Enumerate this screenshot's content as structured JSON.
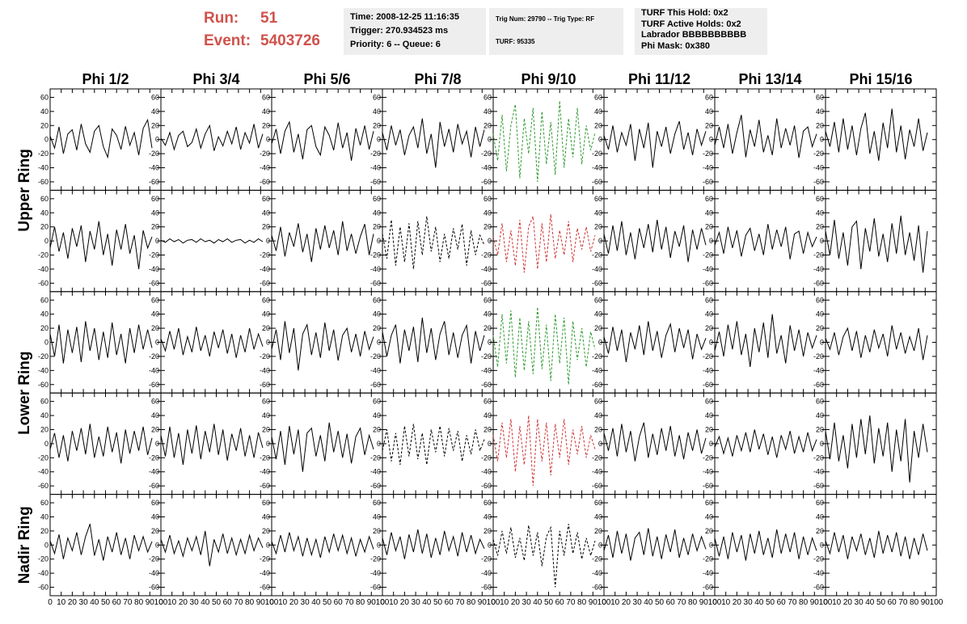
{
  "header": {
    "run": {
      "label": "Run:",
      "value": "51"
    },
    "event": {
      "label": "Event:",
      "value": "5403726"
    },
    "box1": [
      "Time: 2008-12-25 11:16:35",
      "Trigger: 270.934523 ms",
      "Priority: 6 -- Queue: 6"
    ],
    "box2": [
      "Trig Num: 29790 -- Trig Type: RF",
      "TURF: 95335"
    ],
    "box3": [
      "TURF This Hold: 0x2",
      "TURF Active Holds: 0x2",
      "Labrador BBBBBBBBBB",
      "Phi Mask: 0x380"
    ]
  },
  "columns": [
    "Phi 1/2",
    "Phi 3/4",
    "Phi 5/6",
    "Phi 7/8",
    "Phi 9/10",
    "Phi 11/12",
    "Phi 13/14",
    "Phi 15/16"
  ],
  "ring_labels": [
    "Upper Ring",
    "Lower Ring",
    "Nadir Ring"
  ],
  "xlim": [
    0,
    100
  ],
  "xticks": [
    0,
    10,
    20,
    30,
    40,
    50,
    60,
    70,
    80,
    90,
    100
  ],
  "ylim": [
    -72,
    72
  ],
  "yticks": [
    -60,
    -40,
    -20,
    0,
    20,
    40,
    60
  ],
  "x": [
    0,
    4,
    8,
    12,
    16,
    20,
    24,
    28,
    32,
    36,
    40,
    44,
    48,
    52,
    56,
    60,
    64,
    68,
    72,
    76,
    80,
    84,
    88,
    92
  ],
  "panels": [
    [
      {
        "color": "#000000",
        "dashed": false,
        "values": [
          5,
          -12,
          18,
          -20,
          8,
          14,
          -15,
          22,
          -6,
          -18,
          12,
          20,
          -10,
          -25,
          15,
          6,
          -14,
          19,
          -8,
          10,
          -22,
          16,
          28,
          -12
        ]
      },
      {
        "color": "#000000",
        "dashed": false,
        "values": [
          2,
          -8,
          10,
          -14,
          6,
          12,
          -10,
          -4,
          15,
          -12,
          8,
          20,
          -16,
          4,
          -9,
          12,
          -6,
          18,
          -14,
          10,
          -5,
          22,
          -12,
          8
        ]
      },
      {
        "color": "#000000",
        "dashed": false,
        "values": [
          -6,
          15,
          -20,
          12,
          25,
          -18,
          8,
          -28,
          14,
          20,
          -10,
          -22,
          18,
          6,
          -15,
          24,
          -12,
          10,
          -30,
          16,
          -8,
          20,
          -14,
          12
        ]
      },
      {
        "color": "#000000",
        "dashed": false,
        "values": [
          10,
          -15,
          20,
          -8,
          14,
          -22,
          6,
          18,
          -12,
          30,
          -20,
          8,
          -40,
          25,
          -10,
          15,
          -18,
          22,
          -6,
          12,
          -25,
          18,
          -10,
          14
        ]
      },
      {
        "color": "#2e9a2e",
        "dashed": true,
        "values": [
          8,
          -30,
          35,
          -45,
          20,
          50,
          -55,
          30,
          -20,
          45,
          -60,
          40,
          -35,
          25,
          -50,
          55,
          -40,
          30,
          -25,
          45,
          -35,
          20,
          -15,
          10
        ]
      },
      {
        "color": "#000000",
        "dashed": false,
        "values": [
          6,
          -14,
          20,
          -18,
          10,
          -8,
          22,
          -30,
          15,
          -12,
          24,
          -40,
          12,
          -10,
          18,
          -20,
          8,
          26,
          -14,
          10,
          -22,
          15,
          -8,
          12
        ]
      },
      {
        "color": "#000000",
        "dashed": false,
        "values": [
          -8,
          18,
          -12,
          22,
          -20,
          10,
          35,
          -25,
          14,
          -10,
          28,
          -18,
          6,
          -22,
          30,
          -12,
          16,
          -8,
          20,
          -26,
          12,
          18,
          -10,
          8
        ]
      },
      {
        "color": "#000000",
        "dashed": false,
        "values": [
          12,
          -10,
          25,
          -18,
          30,
          -14,
          20,
          -22,
          16,
          38,
          -20,
          12,
          -30,
          24,
          -12,
          44,
          -18,
          20,
          -28,
          14,
          -10,
          30,
          -16,
          10
        ]
      }
    ],
    [
      {
        "color": "#000000",
        "dashed": false,
        "values": [
          -10,
          20,
          -15,
          12,
          -25,
          18,
          -8,
          22,
          -30,
          14,
          -12,
          28,
          -20,
          10,
          -35,
          16,
          -12,
          24,
          -18,
          8,
          -40,
          15,
          -10,
          6
        ]
      },
      {
        "color": "#000000",
        "dashed": false,
        "values": [
          1,
          -2,
          3,
          -1,
          2,
          -3,
          1,
          2,
          -2,
          3,
          -1,
          1,
          -3,
          2,
          -1,
          3,
          -2,
          1,
          2,
          -3,
          1,
          -2,
          3,
          -1
        ]
      },
      {
        "color": "#000000",
        "dashed": false,
        "values": [
          8,
          -14,
          20,
          -22,
          12,
          -8,
          25,
          -16,
          10,
          -30,
          18,
          -12,
          22,
          -10,
          15,
          -20,
          28,
          -14,
          10,
          -18,
          6,
          24,
          -20,
          10
        ]
      },
      {
        "color": "#000000",
        "dashed": true,
        "values": [
          10,
          -25,
          30,
          -35,
          20,
          -30,
          25,
          -40,
          28,
          -20,
          35,
          -15,
          20,
          -30,
          10,
          -25,
          18,
          -12,
          24,
          -35,
          15,
          -20,
          8,
          -6
        ]
      },
      {
        "color": "#cc3333",
        "dashed": true,
        "values": [
          6,
          -20,
          25,
          -30,
          15,
          -35,
          30,
          -45,
          20,
          35,
          -40,
          25,
          -30,
          38,
          -25,
          15,
          -20,
          28,
          -30,
          18,
          -12,
          20,
          -15,
          8
        ]
      },
      {
        "color": "#000000",
        "dashed": false,
        "values": [
          10,
          -18,
          22,
          -14,
          28,
          -20,
          12,
          -26,
          18,
          -10,
          24,
          -16,
          30,
          -12,
          20,
          -24,
          14,
          -8,
          22,
          -30,
          16,
          -12,
          18,
          -6
        ]
      },
      {
        "color": "#000000",
        "dashed": false,
        "values": [
          -6,
          12,
          -18,
          20,
          -10,
          15,
          -22,
          8,
          18,
          -14,
          10,
          -20,
          24,
          -12,
          16,
          -8,
          20,
          -26,
          10,
          14,
          -18,
          12,
          -8,
          6
        ]
      },
      {
        "color": "#000000",
        "dashed": false,
        "values": [
          14,
          -20,
          30,
          -25,
          12,
          -35,
          20,
          28,
          -40,
          18,
          -15,
          32,
          -22,
          10,
          -30,
          25,
          -18,
          36,
          -20,
          12,
          -28,
          22,
          -45,
          14
        ]
      }
    ],
    [
      {
        "color": "#000000",
        "dashed": false,
        "values": [
          12,
          -20,
          25,
          -30,
          18,
          -15,
          22,
          -28,
          30,
          -12,
          20,
          -25,
          15,
          -22,
          28,
          -18,
          12,
          -30,
          20,
          -15,
          25,
          -10,
          18,
          -8
        ]
      },
      {
        "color": "#000000",
        "dashed": false,
        "values": [
          5,
          -12,
          16,
          -10,
          20,
          -18,
          8,
          -14,
          22,
          -12,
          10,
          -20,
          15,
          -8,
          18,
          -16,
          12,
          -22,
          10,
          -14,
          20,
          -10,
          12,
          -6
        ]
      },
      {
        "color": "#000000",
        "dashed": false,
        "values": [
          -10,
          18,
          -25,
          30,
          -15,
          20,
          -40,
          12,
          25,
          -18,
          14,
          -22,
          28,
          -12,
          18,
          -26,
          10,
          20,
          -14,
          12,
          -20,
          16,
          -10,
          8
        ]
      },
      {
        "color": "#000000",
        "dashed": false,
        "values": [
          15,
          -20,
          10,
          25,
          -30,
          18,
          -12,
          22,
          -28,
          35,
          -15,
          20,
          -25,
          12,
          30,
          -18,
          14,
          -22,
          10,
          24,
          -30,
          16,
          -12,
          10
        ]
      },
      {
        "color": "#2e9a2e",
        "dashed": true,
        "values": [
          10,
          -35,
          40,
          -30,
          45,
          -50,
          35,
          -40,
          30,
          -45,
          50,
          -38,
          25,
          -55,
          40,
          -30,
          35,
          -60,
          30,
          -25,
          20,
          -35,
          15,
          -10
        ]
      },
      {
        "color": "#000000",
        "dashed": false,
        "values": [
          8,
          -16,
          22,
          -12,
          18,
          -28,
          14,
          -10,
          24,
          -18,
          30,
          -12,
          16,
          -22,
          10,
          26,
          -14,
          20,
          -8,
          18,
          -24,
          12,
          -10,
          6
        ]
      },
      {
        "color": "#000000",
        "dashed": false,
        "values": [
          -12,
          15,
          -20,
          25,
          -10,
          30,
          -18,
          12,
          -35,
          20,
          -14,
          28,
          -22,
          40,
          -16,
          10,
          -30,
          24,
          -12,
          18,
          -20,
          14,
          -8,
          10
        ]
      },
      {
        "color": "#000000",
        "dashed": false,
        "values": [
          6,
          -10,
          14,
          -18,
          8,
          20,
          -12,
          16,
          -22,
          10,
          -14,
          18,
          -8,
          12,
          -20,
          24,
          -10,
          14,
          -16,
          8,
          -12,
          20,
          -25,
          10
        ]
      }
    ],
    [
      {
        "color": "#000000",
        "dashed": false,
        "values": [
          -8,
          15,
          -20,
          12,
          -25,
          18,
          -10,
          22,
          -15,
          28,
          -20,
          10,
          -18,
          24,
          -12,
          16,
          -28,
          20,
          -14,
          18,
          -10,
          24,
          -16,
          8
        ]
      },
      {
        "color": "#000000",
        "dashed": false,
        "values": [
          12,
          -18,
          24,
          -20,
          15,
          -30,
          20,
          -14,
          26,
          -22,
          18,
          -12,
          28,
          -16,
          20,
          -24,
          14,
          -10,
          22,
          -18,
          12,
          -20,
          16,
          -6
        ]
      },
      {
        "color": "#000000",
        "dashed": false,
        "values": [
          10,
          -22,
          18,
          -30,
          25,
          -15,
          20,
          -40,
          15,
          22,
          -18,
          12,
          -25,
          30,
          -12,
          18,
          -20,
          14,
          -28,
          10,
          22,
          -16,
          12,
          -8
        ]
      },
      {
        "color": "#000000",
        "dashed": true,
        "values": [
          -10,
          20,
          -25,
          15,
          -30,
          25,
          -18,
          28,
          -22,
          15,
          -30,
          20,
          -12,
          25,
          -18,
          22,
          -10,
          18,
          -25,
          12,
          -15,
          20,
          -10,
          6
        ]
      },
      {
        "color": "#cc3333",
        "dashed": true,
        "values": [
          12,
          -25,
          30,
          -20,
          35,
          -40,
          25,
          -30,
          40,
          -60,
          35,
          -25,
          30,
          -45,
          28,
          -20,
          35,
          -30,
          20,
          -15,
          25,
          -20,
          12,
          -8
        ]
      },
      {
        "color": "#000000",
        "dashed": false,
        "values": [
          15,
          -10,
          22,
          -18,
          28,
          -12,
          18,
          -25,
          10,
          30,
          -20,
          14,
          -16,
          22,
          -10,
          25,
          -18,
          12,
          -22,
          16,
          -10,
          20,
          -14,
          8
        ]
      },
      {
        "color": "#000000",
        "dashed": false,
        "values": [
          -5,
          10,
          -14,
          8,
          -18,
          12,
          -10,
          16,
          -12,
          20,
          -8,
          14,
          -16,
          10,
          -20,
          12,
          -8,
          18,
          -14,
          10,
          -12,
          16,
          -10,
          6
        ]
      },
      {
        "color": "#000000",
        "dashed": false,
        "values": [
          18,
          -22,
          30,
          -25,
          12,
          -35,
          28,
          -20,
          35,
          -15,
          40,
          -28,
          22,
          -18,
          30,
          -40,
          20,
          -25,
          35,
          -55,
          18,
          -20,
          28,
          -12
        ]
      }
    ],
    [
      {
        "color": "#000000",
        "dashed": false,
        "values": [
          6,
          -12,
          15,
          -20,
          10,
          -8,
          18,
          -14,
          12,
          30,
          -15,
          8,
          -22,
          12,
          -10,
          18,
          -14,
          10,
          -20,
          14,
          -8,
          12,
          -10,
          5
        ]
      },
      {
        "color": "#000000",
        "dashed": false,
        "values": [
          8,
          -10,
          14,
          -12,
          6,
          -16,
          10,
          -8,
          12,
          -14,
          20,
          -30,
          8,
          -10,
          16,
          -12,
          10,
          -14,
          8,
          -12,
          14,
          -8,
          10,
          -4
        ]
      },
      {
        "color": "#000000",
        "dashed": false,
        "values": [
          5,
          -12,
          14,
          -10,
          18,
          -8,
          12,
          -16,
          10,
          -14,
          8,
          -18,
          12,
          -10,
          16,
          -8,
          14,
          -12,
          10,
          -16,
          8,
          -10,
          12,
          -6
        ]
      },
      {
        "color": "#000000",
        "dashed": false,
        "values": [
          10,
          -14,
          18,
          -8,
          12,
          -20,
          15,
          -10,
          22,
          -12,
          16,
          -18,
          10,
          -14,
          20,
          -8,
          12,
          -16,
          18,
          -10,
          14,
          -12,
          8,
          -5
        ]
      },
      {
        "color": "#000000",
        "dashed": true,
        "values": [
          8,
          -15,
          20,
          -12,
          25,
          -18,
          10,
          -22,
          28,
          -15,
          18,
          -30,
          12,
          25,
          -60,
          20,
          -15,
          30,
          -12,
          18,
          -20,
          10,
          -15,
          6
        ]
      },
      {
        "color": "#000000",
        "dashed": false,
        "values": [
          -8,
          14,
          -18,
          20,
          -12,
          16,
          -22,
          10,
          18,
          -14,
          24,
          -16,
          12,
          -20,
          15,
          -10,
          22,
          -18,
          10,
          -14,
          16,
          -8,
          12,
          -6
        ]
      },
      {
        "color": "#000000",
        "dashed": false,
        "values": [
          10,
          -16,
          12,
          -20,
          18,
          -10,
          14,
          -22,
          16,
          -12,
          20,
          -14,
          10,
          -18,
          22,
          -12,
          16,
          -10,
          18,
          -20,
          12,
          -14,
          10,
          -8
        ]
      },
      {
        "color": "#000000",
        "dashed": false,
        "values": [
          6,
          -12,
          18,
          -10,
          14,
          -20,
          12,
          -8,
          16,
          -14,
          10,
          -18,
          20,
          -12,
          14,
          -10,
          18,
          -16,
          12,
          -20,
          10,
          -14,
          16,
          -8
        ]
      }
    ]
  ]
}
